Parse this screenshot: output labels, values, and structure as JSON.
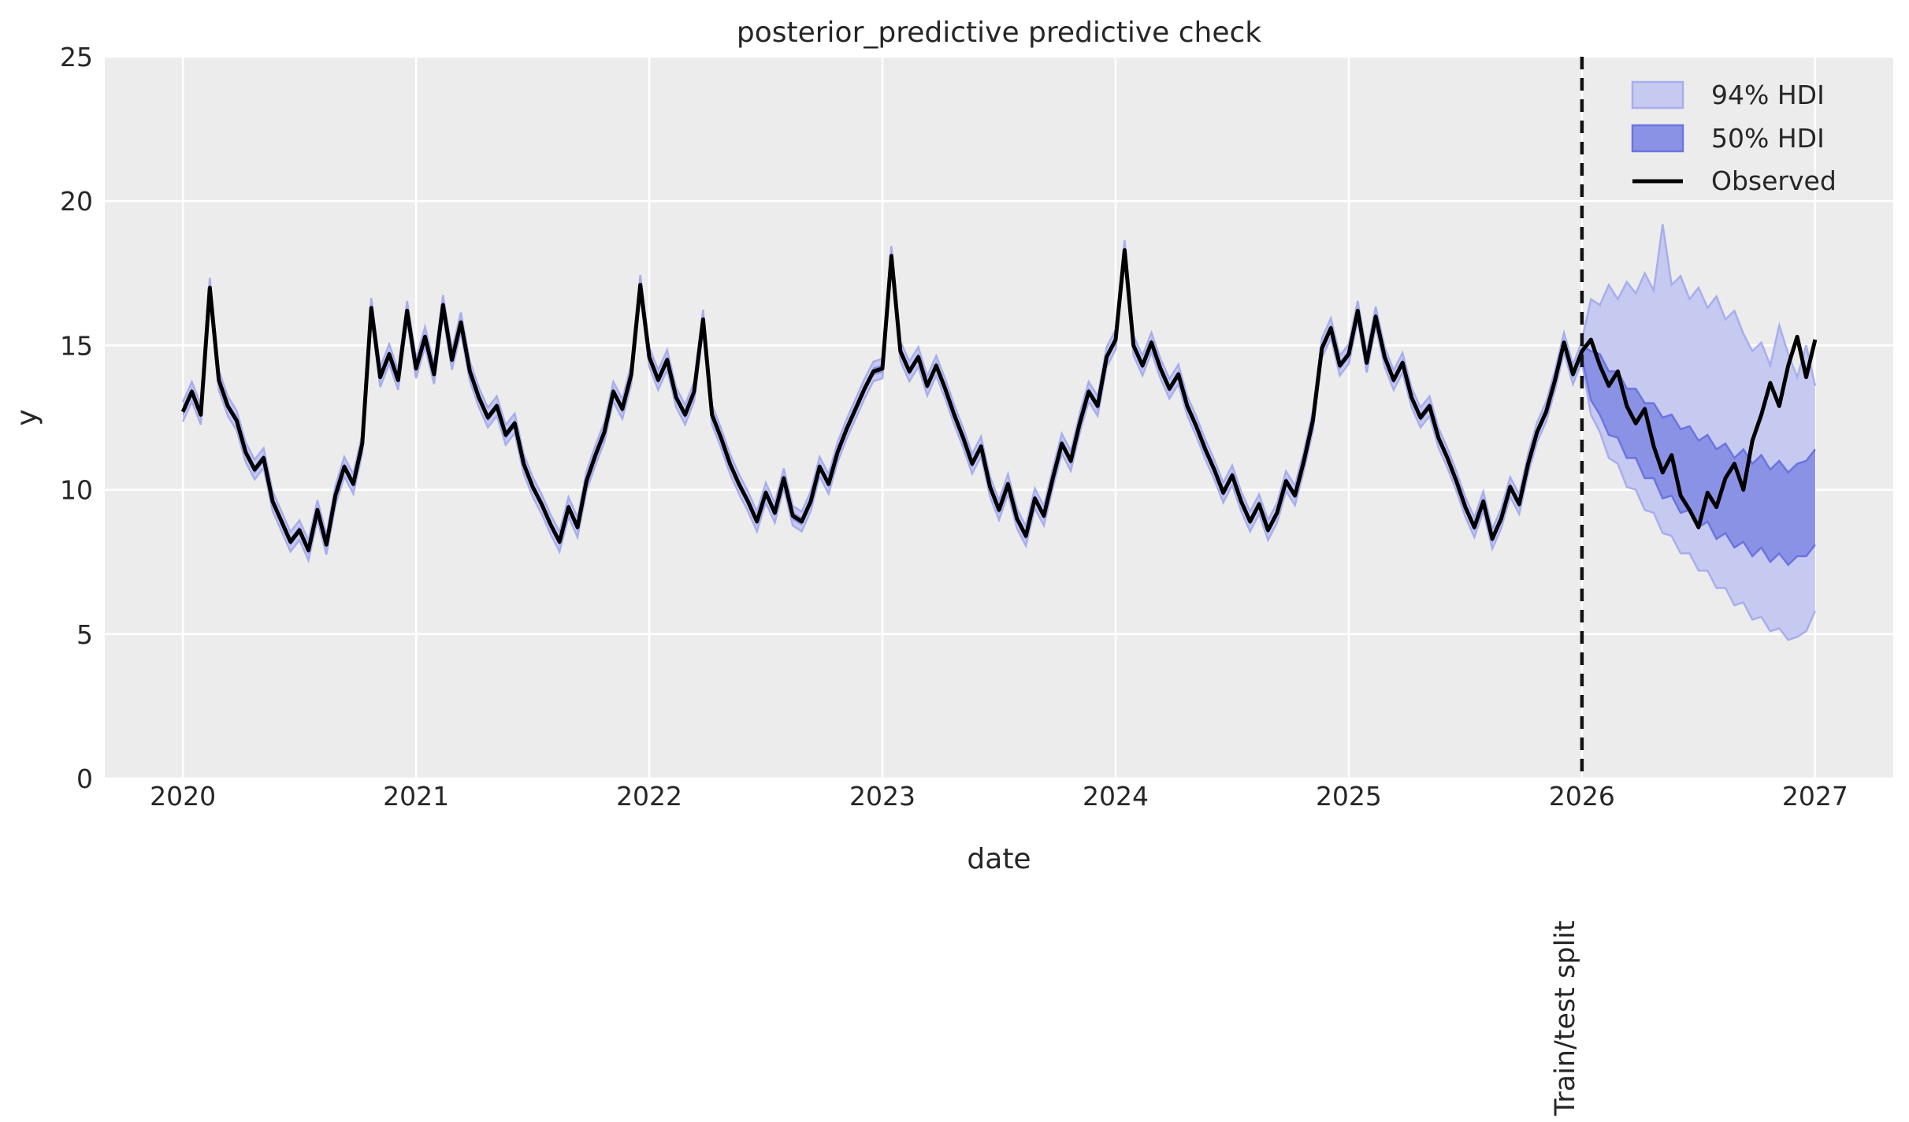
{
  "figure": {
    "background": "#ffffff"
  },
  "chart_data": {
    "type": "line",
    "title": "posterior_predictive predictive check",
    "xlabel": "date",
    "ylabel": "y",
    "xlim": [
      2019.665,
      2027.335
    ],
    "ylim": [
      0,
      25
    ],
    "xticks": [
      2020,
      2021,
      2022,
      2023,
      2024,
      2025,
      2026,
      2027
    ],
    "yticks": [
      0,
      5,
      10,
      15,
      20,
      25
    ],
    "grid": true,
    "legend_position": "upper right",
    "colors": {
      "plot_bg": "#ececec",
      "grid": "#ffffff",
      "text": "#262626",
      "observed": "#000000",
      "split_line": "#111111",
      "band94_fill": "#c6c9f0",
      "band94_edge": "#a8aeec",
      "band50_fill": "#8a92e6",
      "band50_edge": "#6b74de"
    },
    "legend": {
      "entries": [
        {
          "label": "94% HDI",
          "type": "patch",
          "color_key": "band94"
        },
        {
          "label": "50% HDI",
          "type": "patch",
          "color_key": "band50"
        },
        {
          "label": "Observed",
          "type": "line",
          "color": "#000000"
        }
      ]
    },
    "split": {
      "x": 2026.0,
      "label": "Train/test split",
      "dash": [
        16,
        11
      ],
      "line_width": 4.5
    },
    "observed": {
      "name": "Observed",
      "t_start": 2020.0,
      "t_step_years": 0.0384615385,
      "y": [
        12.7,
        13.4,
        12.6,
        17.0,
        13.8,
        12.9,
        12.4,
        11.3,
        10.7,
        11.1,
        9.6,
        8.9,
        8.2,
        8.6,
        7.9,
        9.3,
        8.1,
        9.8,
        10.8,
        10.2,
        11.6,
        16.3,
        13.9,
        14.7,
        13.8,
        16.2,
        14.2,
        15.3,
        14.0,
        16.4,
        14.5,
        15.8,
        14.1,
        13.2,
        12.5,
        12.9,
        11.9,
        12.3,
        10.9,
        10.1,
        9.5,
        8.8,
        8.2,
        9.4,
        8.7,
        10.3,
        11.2,
        12.0,
        13.4,
        12.8,
        14.0,
        17.1,
        14.6,
        13.8,
        14.5,
        13.2,
        12.6,
        13.4,
        15.9,
        12.6,
        11.8,
        10.9,
        10.2,
        9.6,
        8.9,
        9.9,
        9.2,
        10.4,
        9.1,
        8.9,
        9.6,
        10.8,
        10.2,
        11.3,
        12.1,
        12.8,
        13.5,
        14.1,
        14.2,
        18.1,
        14.8,
        14.1,
        14.6,
        13.6,
        14.3,
        13.5,
        12.6,
        11.8,
        10.9,
        11.5,
        10.1,
        9.3,
        10.2,
        9.0,
        8.4,
        9.7,
        9.1,
        10.4,
        11.6,
        11.0,
        12.3,
        13.4,
        12.9,
        14.6,
        15.2,
        18.3,
        15.0,
        14.3,
        15.1,
        14.2,
        13.5,
        14.0,
        12.9,
        12.2,
        11.4,
        10.7,
        9.9,
        10.5,
        9.6,
        8.9,
        9.5,
        8.6,
        9.2,
        10.3,
        9.8,
        11.0,
        12.4,
        14.9,
        15.6,
        14.3,
        14.7,
        16.2,
        14.4,
        16.0,
        14.6,
        13.8,
        14.4,
        13.2,
        12.5,
        12.9,
        11.8,
        11.1,
        10.3,
        9.4,
        8.7,
        9.6,
        8.3,
        9.0,
        10.1,
        9.5,
        10.9,
        12.0,
        12.7,
        13.8,
        15.1,
        14.0,
        14.8,
        15.2,
        14.3,
        13.6,
        14.1,
        12.9,
        12.3,
        12.8,
        11.5,
        10.6,
        11.2,
        9.8,
        9.3,
        8.7,
        9.9,
        9.4,
        10.4,
        10.9,
        10.0,
        11.7,
        12.6,
        13.7,
        12.9,
        14.3,
        15.3,
        13.9,
        15.2
      ]
    },
    "hdi_train": {
      "description": "Bands hug the observed line over the training period",
      "t_end": 2026.0,
      "end_index": 156,
      "halfwidth_94": 0.34,
      "halfwidth_50": 0.14
    },
    "hdi_test": {
      "t_start": 2026.0,
      "t_step_years": 0.0384615385,
      "lo94": [
        14.4,
        12.6,
        12.0,
        11.1,
        10.9,
        10.1,
        10.0,
        9.3,
        9.2,
        8.5,
        8.4,
        7.8,
        7.8,
        7.2,
        7.2,
        6.6,
        6.6,
        6.0,
        6.1,
        5.5,
        5.6,
        5.1,
        5.2,
        4.8,
        4.9,
        5.1,
        5.8
      ],
      "hi94": [
        15.2,
        16.6,
        16.4,
        17.1,
        16.6,
        17.2,
        16.8,
        17.5,
        16.9,
        19.2,
        17.1,
        17.4,
        16.6,
        17.0,
        16.3,
        16.7,
        15.9,
        16.2,
        15.4,
        14.8,
        15.1,
        14.3,
        15.7,
        14.7,
        13.9,
        15.0,
        13.6
      ],
      "lo50": [
        14.6,
        13.1,
        12.6,
        11.9,
        11.8,
        11.1,
        11.1,
        10.4,
        10.4,
        9.7,
        9.8,
        9.2,
        9.3,
        8.7,
        8.9,
        8.3,
        8.5,
        8.0,
        8.2,
        7.7,
        8.0,
        7.5,
        7.8,
        7.4,
        7.7,
        7.7,
        8.1
      ],
      "hi50": [
        15.0,
        14.8,
        14.7,
        14.1,
        14.1,
        13.5,
        13.5,
        13.0,
        13.0,
        12.5,
        12.6,
        12.1,
        12.2,
        11.7,
        11.9,
        11.4,
        11.6,
        11.1,
        11.4,
        10.9,
        11.2,
        10.7,
        11.0,
        10.6,
        10.9,
        11.0,
        11.4
      ]
    }
  }
}
